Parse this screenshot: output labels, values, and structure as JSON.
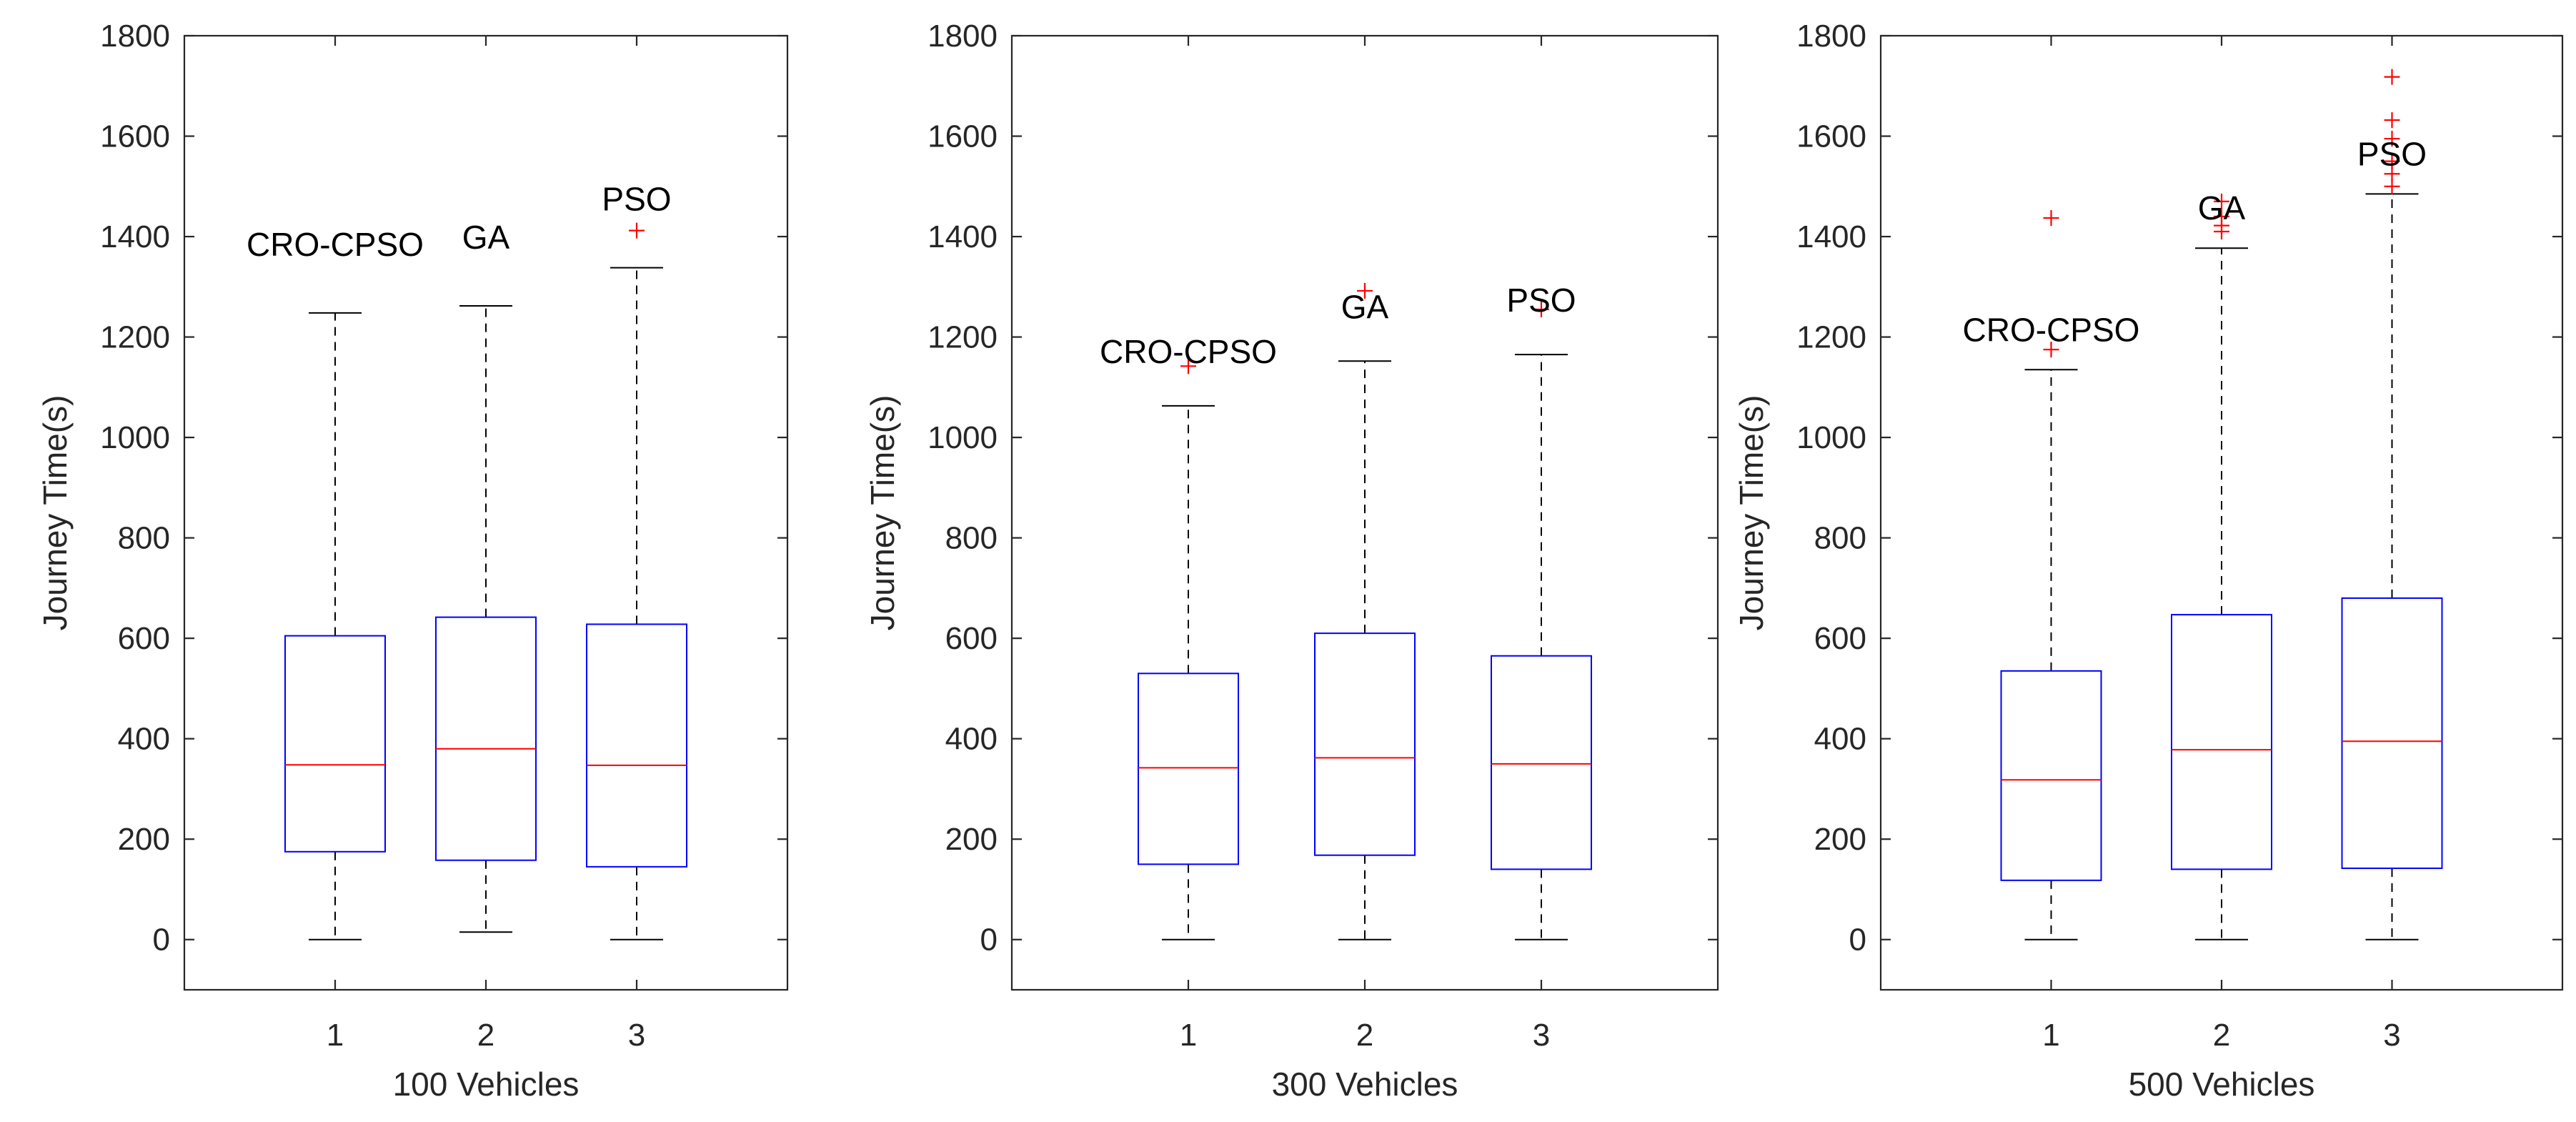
{
  "chart_data": [
    {
      "type": "box",
      "xlabel": "100 Vehicles",
      "ylabel": "Journey Time(s)",
      "ylim": [
        -100,
        1800
      ],
      "yticks": [
        0,
        200,
        400,
        600,
        800,
        1000,
        1200,
        1400,
        1600,
        1800
      ],
      "categories": [
        "1",
        "2",
        "3"
      ],
      "boxes": [
        {
          "name": "CRO-CPSO",
          "min": 0,
          "q1": 175,
          "median": 348,
          "q3": 605,
          "max": 1248,
          "outliers": []
        },
        {
          "name": "GA",
          "min": 15,
          "q1": 158,
          "median": 380,
          "q3": 642,
          "max": 1262,
          "outliers": []
        },
        {
          "name": "PSO",
          "min": 0,
          "q1": 145,
          "median": 347,
          "q3": 628,
          "max": 1338,
          "outliers": [
            1412
          ]
        }
      ]
    },
    {
      "type": "box",
      "xlabel": "300 Vehicles",
      "ylabel": "Journey Time(s)",
      "ylim": [
        -100,
        1800
      ],
      "yticks": [
        0,
        200,
        400,
        600,
        800,
        1000,
        1200,
        1400,
        1600,
        1800
      ],
      "categories": [
        "1",
        "2",
        "3"
      ],
      "boxes": [
        {
          "name": "CRO-CPSO",
          "min": 0,
          "q1": 150,
          "median": 342,
          "q3": 530,
          "max": 1063,
          "outliers": [
            1142
          ]
        },
        {
          "name": "GA",
          "min": 0,
          "q1": 168,
          "median": 362,
          "q3": 610,
          "max": 1152,
          "outliers": [
            1292
          ]
        },
        {
          "name": "PSO",
          "min": 0,
          "q1": 140,
          "median": 350,
          "q3": 565,
          "max": 1165,
          "outliers": [
            1255
          ]
        }
      ]
    },
    {
      "type": "box",
      "xlabel": "500 Vehicles",
      "ylabel": "Journey Time(s)",
      "ylim": [
        -100,
        1800
      ],
      "yticks": [
        0,
        200,
        400,
        600,
        800,
        1000,
        1200,
        1400,
        1600,
        1800
      ],
      "categories": [
        "1",
        "2",
        "3"
      ],
      "boxes": [
        {
          "name": "CRO-CPSO",
          "min": 0,
          "q1": 118,
          "median": 318,
          "q3": 535,
          "max": 1135,
          "outliers": [
            1437,
            1175
          ]
        },
        {
          "name": "GA",
          "min": 0,
          "q1": 140,
          "median": 378,
          "q3": 647,
          "max": 1377,
          "outliers": [
            1470,
            1440,
            1422,
            1410
          ]
        },
        {
          "name": "PSO",
          "min": 0,
          "q1": 142,
          "median": 395,
          "q3": 680,
          "max": 1485,
          "outliers": [
            1718,
            1632,
            1595,
            1550,
            1525,
            1500
          ]
        }
      ]
    }
  ]
}
